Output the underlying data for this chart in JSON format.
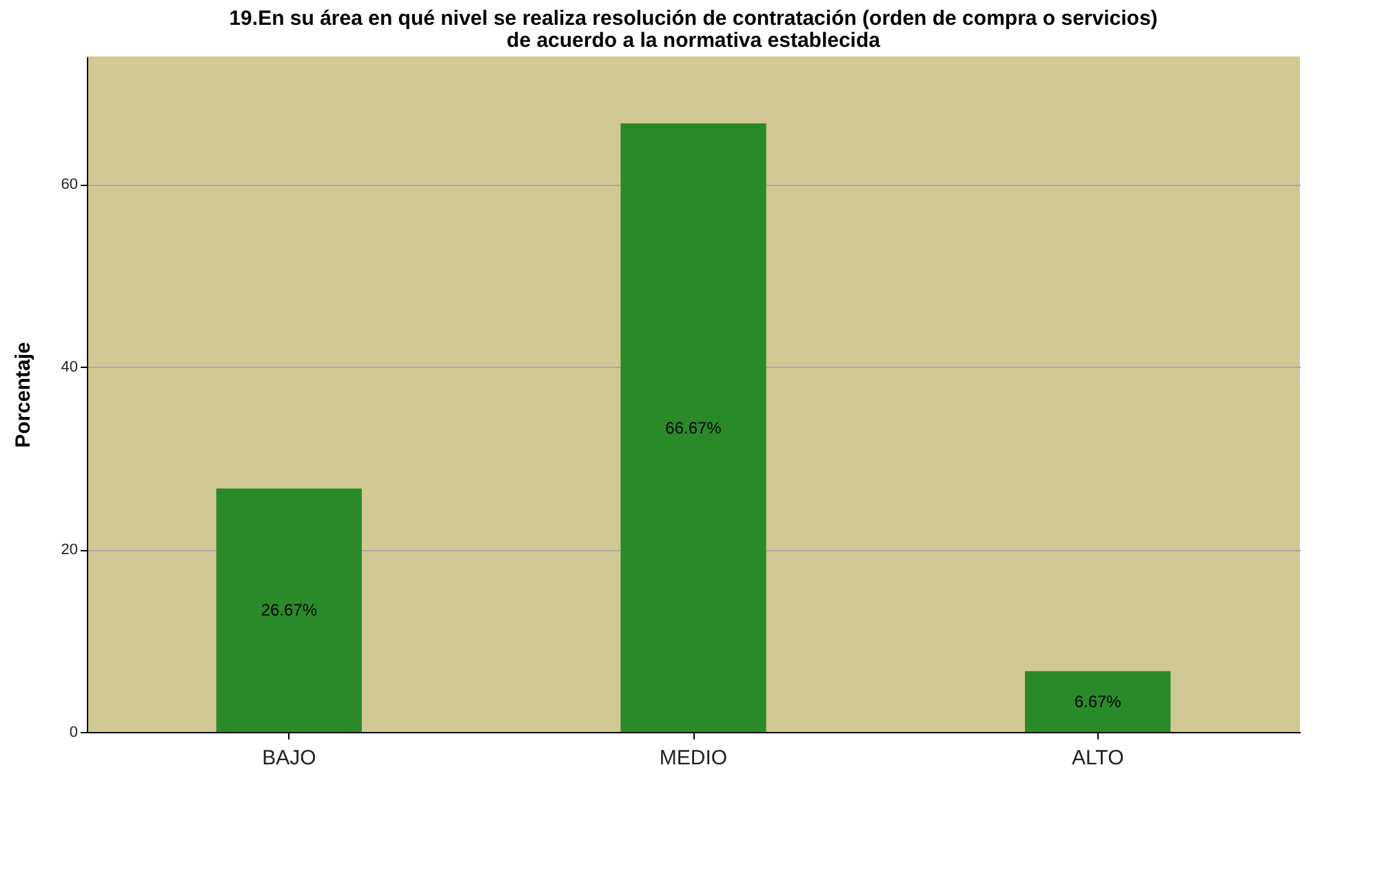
{
  "chart_data": {
    "type": "bar",
    "title": "19.En su área en qué nivel se realiza resolución de contratación (orden de compra o servicios) de acuerdo a la normativa establecida",
    "ylabel": "Porcentaje",
    "categories": [
      "BAJO",
      "MEDIO",
      "ALTO"
    ],
    "values": [
      26.67,
      66.67,
      6.67
    ],
    "value_labels": [
      "26.67%",
      "66.67%",
      "6.67%"
    ],
    "color": "#2a8a2a",
    "ylim": [
      0,
      74
    ],
    "yticks": [
      0,
      20,
      40,
      60
    ],
    "grid": "y"
  }
}
